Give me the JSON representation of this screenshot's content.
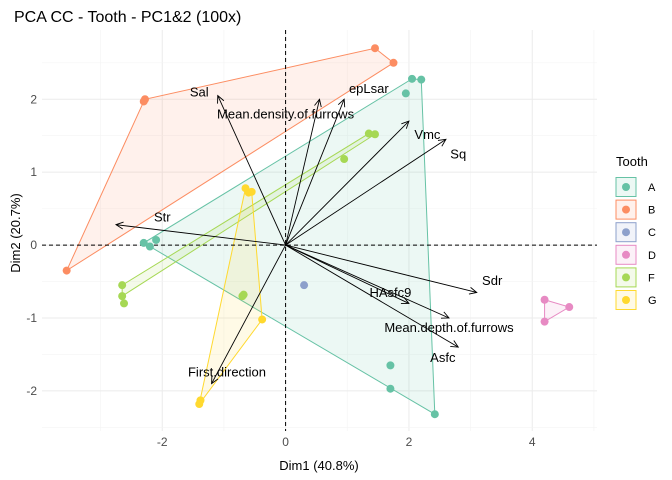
{
  "chart_data": {
    "type": "scatter",
    "title": "PCA CC - Tooth - PC1&2 (100x)",
    "xlabel": "Dim1 (40.8%)",
    "ylabel": "Dim2 (20.7%)",
    "xlim": [
      -3.95,
      5.05
    ],
    "ylim": [
      -2.55,
      2.95
    ],
    "xticks": [
      -2,
      0,
      2,
      4
    ],
    "yticks": [
      -2,
      -1,
      0,
      1,
      2
    ],
    "legend": {
      "title": "Tooth",
      "position": "right",
      "entries": [
        {
          "name": "A",
          "color": "#66C2A5"
        },
        {
          "name": "B",
          "color": "#FC8D62"
        },
        {
          "name": "C",
          "color": "#8DA0CB"
        },
        {
          "name": "D",
          "color": "#E78AC3"
        },
        {
          "name": "F",
          "color": "#A6D854"
        },
        {
          "name": "G",
          "color": "#FFD92F"
        }
      ]
    },
    "series": [
      {
        "name": "A",
        "color": "#66C2A5",
        "points": [
          [
            2.05,
            2.28
          ],
          [
            2.2,
            2.27
          ],
          [
            1.95,
            2.08
          ],
          [
            -2.3,
            0.03
          ],
          [
            -2.2,
            -0.02
          ],
          [
            -2.1,
            0.07
          ],
          [
            1.7,
            -1.65
          ],
          [
            1.7,
            -1.97
          ],
          [
            2.42,
            -2.32
          ]
        ],
        "hull": [
          [
            2.05,
            2.28
          ],
          [
            2.2,
            2.27
          ],
          [
            2.42,
            -2.32
          ],
          [
            -2.3,
            0.03
          ]
        ]
      },
      {
        "name": "B",
        "color": "#FC8D62",
        "points": [
          [
            -2.3,
            1.97
          ],
          [
            -2.28,
            2.0
          ],
          [
            1.45,
            2.7
          ],
          [
            1.75,
            2.5
          ],
          [
            -3.55,
            -0.35
          ]
        ],
        "hull": [
          [
            -2.3,
            1.97
          ],
          [
            -2.28,
            2.0
          ],
          [
            1.45,
            2.7
          ],
          [
            1.75,
            2.5
          ],
          [
            -3.55,
            -0.35
          ]
        ]
      },
      {
        "name": "C",
        "color": "#8DA0CB",
        "points": [
          [
            0.3,
            -0.55
          ]
        ],
        "hull": []
      },
      {
        "name": "D",
        "color": "#E78AC3",
        "points": [
          [
            4.2,
            -0.75
          ],
          [
            4.6,
            -0.85
          ],
          [
            4.2,
            -1.05
          ]
        ],
        "hull": [
          [
            4.2,
            -0.75
          ],
          [
            4.6,
            -0.85
          ],
          [
            4.2,
            -1.05
          ]
        ]
      },
      {
        "name": "F",
        "color": "#A6D854",
        "points": [
          [
            1.35,
            1.53
          ],
          [
            1.45,
            1.52
          ],
          [
            0.95,
            1.18
          ],
          [
            -2.65,
            -0.55
          ],
          [
            -2.65,
            -0.7
          ],
          [
            -2.62,
            -0.8
          ],
          [
            -0.7,
            -0.7
          ],
          [
            -0.68,
            -0.68
          ]
        ],
        "hull": [
          [
            1.35,
            1.53
          ],
          [
            1.45,
            1.52
          ],
          [
            -2.65,
            -0.7
          ],
          [
            -2.65,
            -0.55
          ]
        ]
      },
      {
        "name": "G",
        "color": "#FFD92F",
        "points": [
          [
            -0.65,
            0.78
          ],
          [
            -0.6,
            0.72
          ],
          [
            -0.55,
            0.73
          ],
          [
            -0.38,
            -1.02
          ],
          [
            -1.38,
            -2.13
          ],
          [
            -1.4,
            -2.18
          ]
        ],
        "hull": [
          [
            -0.65,
            0.78
          ],
          [
            -0.55,
            0.73
          ],
          [
            -0.38,
            -1.02
          ],
          [
            -1.4,
            -2.18
          ]
        ]
      }
    ],
    "variables": [
      {
        "name": "Sal",
        "x": -1.1,
        "y": 2.05,
        "label_x": -1.4,
        "label_y": 2.09
      },
      {
        "name": "Mean.density.of.furrows",
        "x": 0.55,
        "y": 2.0,
        "label_x": 0.0,
        "label_y": 1.79
      },
      {
        "name": "epLsar",
        "x": 0.95,
        "y": 2.0,
        "label_x": 1.35,
        "label_y": 2.14
      },
      {
        "name": "Vmc",
        "x": 2.0,
        "y": 1.7,
        "label_x": 2.3,
        "label_y": 1.51
      },
      {
        "name": "Sq",
        "x": 2.6,
        "y": 1.45,
        "label_x": 2.8,
        "label_y": 1.24
      },
      {
        "name": "Str",
        "x": -2.75,
        "y": 0.28,
        "label_x": -2.0,
        "label_y": 0.38
      },
      {
        "name": "Sdr",
        "x": 3.1,
        "y": -0.65,
        "label_x": 3.35,
        "label_y": -0.49
      },
      {
        "name": "HAsfc9",
        "x": 2.0,
        "y": -0.8,
        "label_x": 1.7,
        "label_y": -0.66
      },
      {
        "name": "Mean.depth.of.furrows",
        "x": 2.65,
        "y": -1.0,
        "label_x": 2.65,
        "label_y": -1.14
      },
      {
        "name": "Asfc",
        "x": 2.8,
        "y": -1.4,
        "label_x": 2.55,
        "label_y": -1.55
      },
      {
        "name": "First.direction",
        "x": -1.2,
        "y": -1.9,
        "label_x": -0.95,
        "label_y": -1.75
      }
    ]
  }
}
